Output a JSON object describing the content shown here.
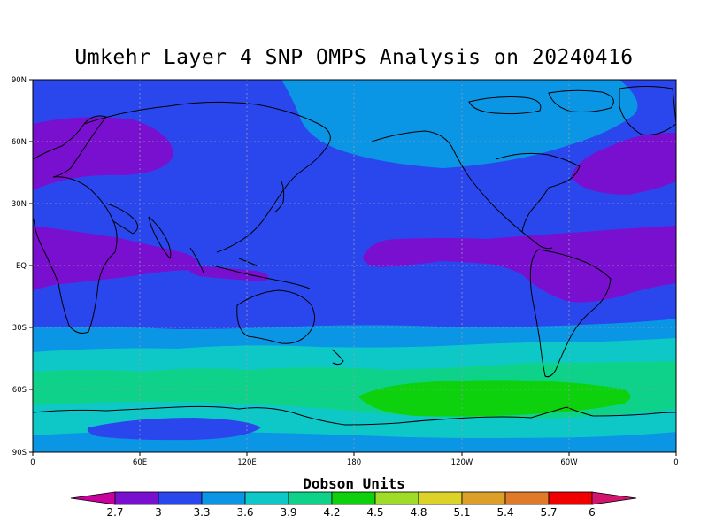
{
  "title": "Umkehr Layer 4 SNP OMPS Analysis on 20240416",
  "map": {
    "lat_labels": [
      "90N",
      "60N",
      "30N",
      "EQ",
      "30S",
      "60S",
      "90S"
    ],
    "lon_labels": [
      "0",
      "60E",
      "120E",
      "180",
      "120W",
      "60W",
      "0"
    ],
    "graticule": "dotted"
  },
  "colorbar": {
    "title": "Dobson Units",
    "ticks": [
      "2.7",
      "3",
      "3.3",
      "3.6",
      "3.9",
      "4.2",
      "4.5",
      "4.8",
      "5.1",
      "5.4",
      "5.7",
      "6"
    ],
    "colors": [
      "#c8009c",
      "#7a10cf",
      "#2a47ee",
      "#0a96e4",
      "#0ec8c8",
      "#0ed28a",
      "#0cd10c",
      "#9edc28",
      "#dcd228",
      "#dca028",
      "#e07a28",
      "#f00000",
      "#d2166e"
    ]
  }
}
